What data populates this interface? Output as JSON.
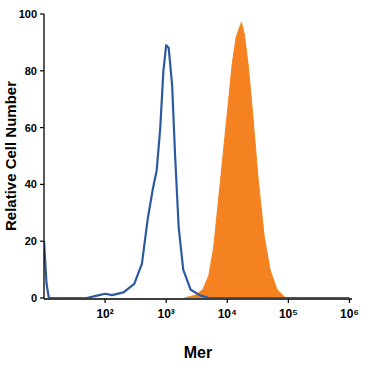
{
  "chart_data": {
    "type": "line",
    "x_label": "Mer",
    "y_label": "Relative Cell Number",
    "log": "x",
    "grid": false,
    "xlim": [
      10,
      1100000
    ],
    "ylim": [
      0,
      100
    ],
    "xticks": [
      {
        "value": 100,
        "label": "10²"
      },
      {
        "value": 1000,
        "label": "10³"
      },
      {
        "value": 10000,
        "label": "10⁴"
      },
      {
        "value": 100000,
        "label": "10⁵"
      },
      {
        "value": 1000000,
        "label": "10⁶"
      }
    ],
    "yticks": [
      0,
      20,
      40,
      60,
      80,
      100
    ],
    "series": [
      {
        "type": "line",
        "color": "#2c5aa0",
        "x": [
          10,
          11,
          12,
          50,
          80,
          100,
          130,
          200,
          300,
          400,
          500,
          600,
          700,
          800,
          900,
          1000,
          1100,
          1250,
          1400,
          1600,
          1900,
          2500,
          3500,
          5000,
          1000000
        ],
        "values": [
          20,
          5,
          0,
          0,
          1,
          1.5,
          1,
          2,
          5,
          12,
          28,
          38,
          45,
          60,
          80,
          89,
          88,
          75,
          50,
          25,
          10,
          3,
          1,
          0,
          0
        ]
      },
      {
        "type": "area",
        "color": "#f58220",
        "x": [
          2000,
          3000,
          4000,
          5000,
          6000,
          7000,
          8500,
          10000,
          12000,
          14000,
          17000,
          19000,
          22000,
          26000,
          32000,
          40000,
          50000,
          65000,
          90000
        ],
        "values": [
          0,
          1,
          3,
          8,
          18,
          32,
          50,
          65,
          82,
          92,
          97,
          93,
          82,
          65,
          42,
          22,
          10,
          3,
          0
        ]
      }
    ]
  }
}
